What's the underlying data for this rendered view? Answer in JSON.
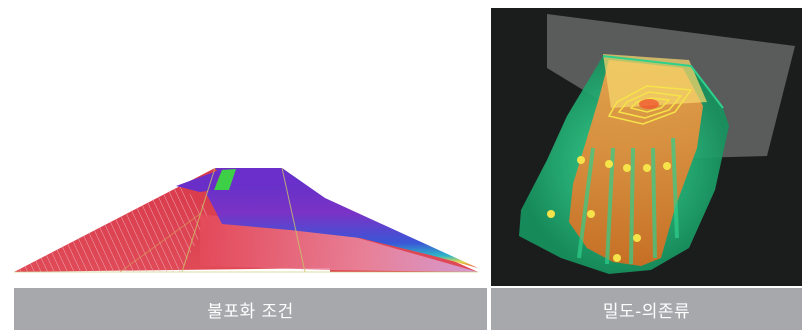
{
  "figures": [
    {
      "caption": "불포화 조건",
      "colors": {
        "red": "#d83b4a",
        "magenta": "#8a35c9",
        "blue": "#4c3fcb",
        "green": "#35c84b",
        "pink": "#e7a0b4"
      }
    },
    {
      "caption": "밀도-의존류",
      "colors": {
        "background": "#1b1d1d",
        "orange": "#f08a2c",
        "green": "#2cc27a",
        "plane": "#8a8a8a",
        "yellow": "#f6e34a"
      }
    }
  ]
}
